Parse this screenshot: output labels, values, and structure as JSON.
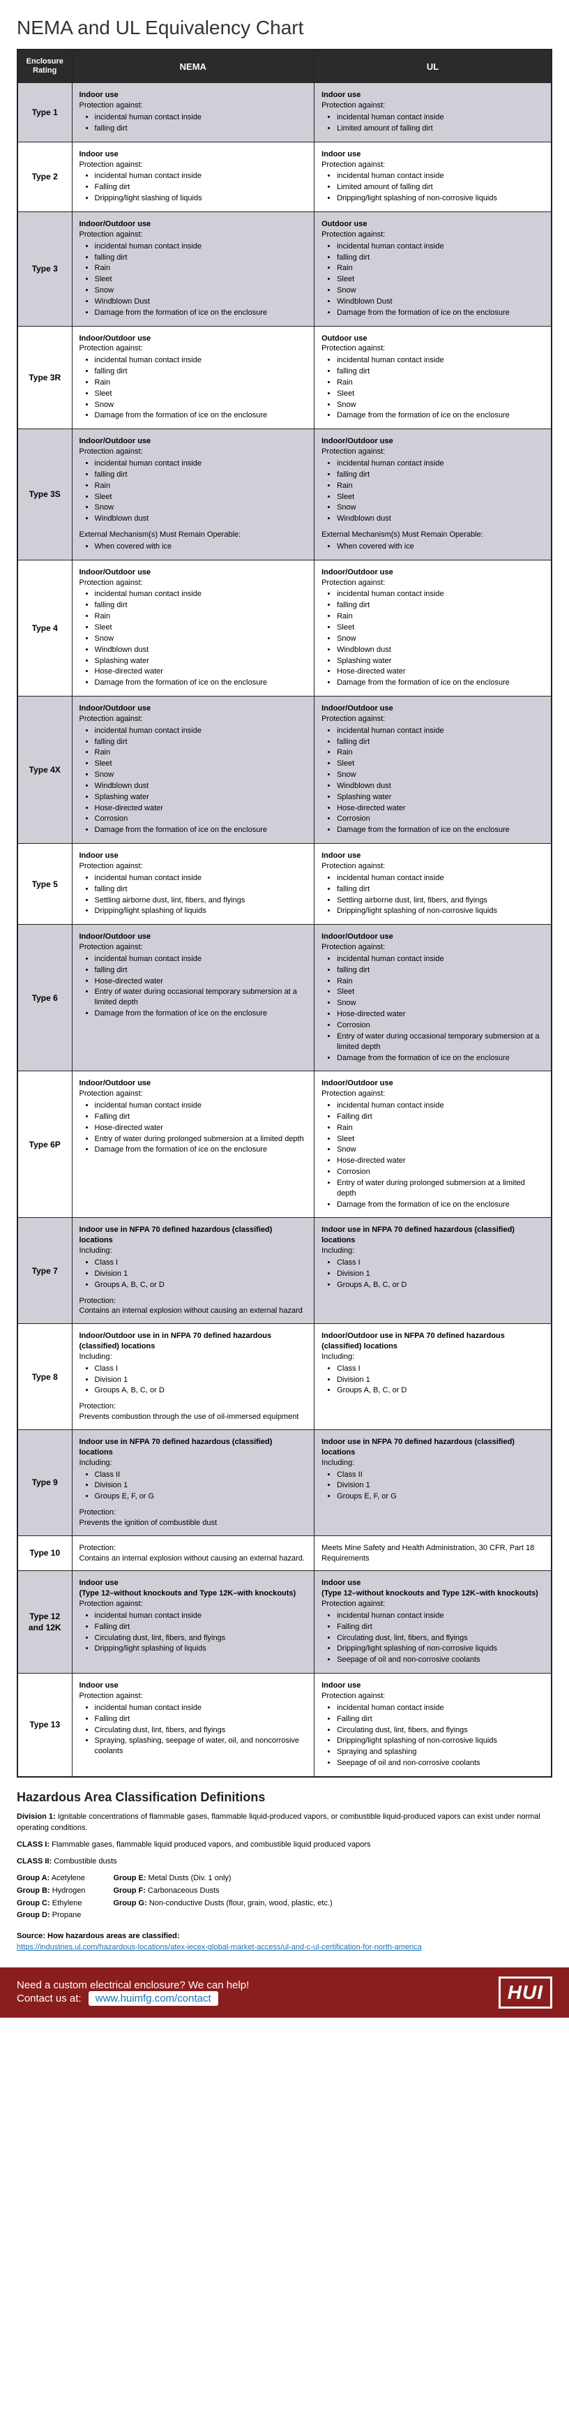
{
  "title": "NEMA and UL Equivalency Chart",
  "headers": {
    "enclosure": "Enclosure Rating",
    "nema": "NEMA",
    "ul": "UL"
  },
  "rows": [
    {
      "rating": "Type 1",
      "shade": "odd",
      "nema": "<span class='bold'>Indoor use</span><br>Protection against:<ul><li>incidental human contact inside</li><li>falling dirt</li></ul>",
      "ul": "<span class='bold'>Indoor use</span><br>Protection against:<ul><li>incidental human contact inside</li><li>Limited amount of falling dirt</li></ul>"
    },
    {
      "rating": "Type 2",
      "shade": "even",
      "nema": "<span class='bold'>Indoor use</span><br>Protection against:<ul><li>incidental human contact inside</li><li>Falling dirt</li><li>Dripping/light slashing of liquids</li></ul>",
      "ul": "<span class='bold'>Indoor use</span><br>Protection against:<ul><li>incidental human contact inside</li><li>Limited amount of falling dirt</li><li>Dripping/light splashing of non-corrosive liquids</li></ul>"
    },
    {
      "rating": "Type 3",
      "shade": "odd",
      "nema": "<span class='bold'>Indoor/Outdoor use</span><br>Protection against:<ul><li>incidental human contact inside</li><li>falling dirt</li><li>Rain</li><li>Sleet</li><li>Snow</li><li>Windblown Dust</li><li>Damage from the formation of ice on the enclosure</li></ul>",
      "ul": "<span class='bold'>Outdoor use</span><br>Protection against:<ul><li>incidental human contact inside</li><li>falling dirt</li><li>Rain</li><li>Sleet</li><li>Snow</li><li>Windblown Dust</li><li>Damage from the formation of ice on the enclosure</li></ul>"
    },
    {
      "rating": "Type 3R",
      "shade": "even",
      "nema": "<span class='bold'>Indoor/Outdoor use</span><br>Protection against:<ul><li>incidental human contact inside</li><li>falling dirt</li><li>Rain</li><li>Sleet</li><li>Snow</li><li>Damage from the formation of ice on the enclosure</li></ul>",
      "ul": "<span class='bold'>Outdoor use</span><br>Protection against:<ul><li>incidental human contact inside</li><li>falling dirt</li><li>Rain</li><li>Sleet</li><li>Snow</li><li>Damage from the formation of ice on the enclosure</li></ul>"
    },
    {
      "rating": "Type 3S",
      "shade": "odd",
      "nema": "<span class='bold'>Indoor/Outdoor use</span><br>Protection against:<ul><li>incidental human contact inside</li><li>falling dirt</li><li>Rain</li><li>Sleet</li><li>Snow</li><li>Windblown dust</li></ul><div class='sub-para'>External Mechanism(s) Must Remain Operable:<ul><li>When covered with ice</li></ul></div>",
      "ul": "<span class='bold'>Indoor/Outdoor use</span><br>Protection against:<ul><li>incidental human contact inside</li><li>falling dirt</li><li>Rain</li><li>Sleet</li><li>Snow</li><li>Windblown dust</li></ul><div class='sub-para'>External Mechanism(s) Must Remain Operable:<ul><li>When covered with ice</li></ul></div>"
    },
    {
      "rating": "Type 4",
      "shade": "even",
      "nema": "<span class='bold'>Indoor/Outdoor use</span><br>Protection against:<ul><li>incidental human contact inside</li><li>falling dirt</li><li>Rain</li><li>Sleet</li><li>Snow</li><li>Windblown dust</li><li>Splashing water</li><li>Hose-directed water</li><li>Damage from the formation of ice on the enclosure</li></ul>",
      "ul": "<span class='bold'>Indoor/Outdoor use</span><br>Protection against:<ul><li>incidental human contact inside</li><li>falling dirt</li><li>Rain</li><li>Sleet</li><li>Snow</li><li>Windblown dust</li><li>Splashing water</li><li>Hose-directed water</li><li>Damage from the formation of ice on the enclosure</li></ul>"
    },
    {
      "rating": "Type 4X",
      "shade": "odd",
      "nema": "<span class='bold'>Indoor/Outdoor use</span><br>Protection against:<ul><li>incidental human contact inside</li><li>falling dirt</li><li>Rain</li><li>Sleet</li><li>Snow</li><li>Windblown dust</li><li>Splashing water</li><li>Hose-directed water</li><li>Corrosion</li><li>Damage from the formation of ice on the enclosure</li></ul>",
      "ul": "<span class='bold'>Indoor/Outdoor use</span><br>Protection against:<ul><li>incidental human contact inside</li><li>falling dirt</li><li>Rain</li><li>Sleet</li><li>Snow</li><li>Windblown dust</li><li>Splashing water</li><li>Hose-directed water</li><li>Corrosion</li><li>Damage from the formation of ice on the enclosure</li></ul>"
    },
    {
      "rating": "Type 5",
      "shade": "even",
      "nema": "<span class='bold'>Indoor use</span><br>Protection against:<ul><li>incidental human contact inside</li><li>falling dirt</li><li>Settling airborne dust, lint, fibers, and flyings</li><li>Dripping/light splashing of liquids</li></ul>",
      "ul": "<span class='bold'>Indoor use</span><br>Protection against:<ul><li>incidental human contact inside</li><li>falling dirt</li><li>Settling airborne dust, lint, fibers, and flyings</li><li>Dripping/light splashing of non-corrosive liquids</li></ul>"
    },
    {
      "rating": "Type 6",
      "shade": "odd",
      "nema": "<span class='bold'>Indoor/Outdoor use</span><br>Protection against:<ul><li>incidental human contact inside</li><li>falling dirt</li><li>Hose-directed water</li><li>Entry of water during occasional temporary submersion at a limited depth</li><li>Damage from the formation of ice on the enclosure</li></ul>",
      "ul": "<span class='bold'>Indoor/Outdoor use</span><br>Protection against:<ul><li>incidental human contact inside</li><li>falling dirt</li><li>Rain</li><li>Sleet</li><li>Snow</li><li>Hose-directed water</li><li>Corrosion</li><li>Entry of water during occasional temporary submersion at a limited depth</li><li>Damage from the formation of ice on the enclosure</li></ul>"
    },
    {
      "rating": "Type 6P",
      "shade": "even",
      "nema": "<span class='bold'>Indoor/Outdoor use</span><br>Protection against:<ul><li>incidental human contact inside</li><li>Falling dirt</li><li>Hose-directed water</li><li>Entry of water during prolonged submersion at a limited depth</li><li>Damage from the formation of ice on the enclosure</li></ul>",
      "ul": "<span class='bold'>Indoor/Outdoor use</span><br>Protection against:<ul><li>incidental human contact inside</li><li>Falling dirt</li><li>Rain</li><li>Sleet</li><li>Snow</li><li>Hose-directed water</li><li>Corrosion</li><li>Entry of water during prolonged submersion at a limited depth</li><li>Damage from the formation of ice on the enclosure</li></ul>"
    },
    {
      "rating": "Type 7",
      "shade": "odd",
      "nema": "<span class='bold'>Indoor use in NFPA 70 defined hazardous (classified) locations</span><br>Including:<ul><li>Class I</li><li>Division 1</li><li>Groups A, B, C, or D</li></ul><div class='sub-para'>Protection:<br>Contains an internal explosion without causing an external hazard</div>",
      "ul": "<span class='bold'>Indoor use in NFPA 70 defined hazardous (classified) locations</span><br>Including:<ul><li>Class I</li><li>Division 1</li><li>Groups A, B, C, or D</li></ul>"
    },
    {
      "rating": "Type 8",
      "shade": "even",
      "nema": "<span class='bold'>Indoor/Outdoor use in in NFPA 70 defined hazardous (classified) locations</span><br>Including:<ul><li>Class I</li><li>Division 1</li><li>Groups A, B, C, or D</li></ul><div class='sub-para'>Protection:<br>Prevents combustion through the use of oil-immersed equipment</div>",
      "ul": "<span class='bold'>Indoor/Outdoor use in NFPA 70 defined hazardous (classified) locations</span><br>Including:<ul><li>Class I</li><li>Division 1</li><li>Groups A, B, C, or D</li></ul>"
    },
    {
      "rating": "Type 9",
      "shade": "odd",
      "nema": "<span class='bold'>Indoor use in NFPA 70 defined hazardous (classified) locations</span><br>Including:<ul><li>Class II</li><li>Division 1</li><li>Groups E, F, or G</li></ul><div class='sub-para'>Protection:<br>Prevents the ignition of combustible dust</div>",
      "ul": "<span class='bold'>Indoor use in NFPA 70 defined hazardous (classified) locations</span><br>Including:<ul><li>Class II</li><li>Division 1</li><li>Groups E, F, or G</li></ul>"
    },
    {
      "rating": "Type 10",
      "shade": "even",
      "nema": "Protection:<br>Contains an internal explosion without causing an external hazard.",
      "ul": "Meets Mine Safety and Health Administration, 30 CFR, Part 18 Requirements"
    },
    {
      "rating": "Type 12 and 12K",
      "shade": "odd",
      "nema": "<span class='bold'>Indoor use<br>(Type 12–without knockouts and Type 12K–with knockouts)</span><br>Protection against:<ul><li>incidental human contact inside</li><li>Falling dirt</li><li>Circulating dust, lint, fibers, and flyings</li><li>Dripping/light splashing of liquids</li></ul>",
      "ul": "<span class='bold'>Indoor use<br>(Type 12–without knockouts and Type 12K–with knockouts)</span><br>Protection against:<ul><li>incidental human contact inside</li><li>Falling dirt</li><li>Circulating dust, lint, fibers, and flyings</li><li>Dripping/light splashing of non-corrosive liquids</li><li>Seepage of oil and non-corrosive coolants</li></ul>"
    },
    {
      "rating": "Type 13",
      "shade": "even",
      "nema": "<span class='bold'>Indoor use</span><br>Protection against:<ul><li>incidental human contact inside</li><li>Falling dirt</li><li>Circulating dust, lint, fibers, and flyings</li><li>Spraying, splashing, seepage of water, oil, and noncorrosive coolants</li></ul>",
      "ul": "<span class='bold'>Indoor use</span><br>Protection against:<ul><li>incidental human contact inside</li><li>Falling dirt</li><li>Circulating dust, lint, fibers, and flyings</li><li>Dripping/light splashing of non-corrosive liquids</li><li>Spraying and splashing</li><li>Seepage of oil and non-corrosive coolants</li></ul>"
    }
  ],
  "defs": {
    "heading": "Hazardous Area Classification Definitions",
    "division1": "Division 1: Ignitable concentrations of flammable gases, flammable liquid-produced vapors, or combustible liquid-produced vapors can exist under normal operating conditions.",
    "class1": "CLASS I: Flammable gases, flammable liquid produced vapors, and combustible liquid produced vapors",
    "class2": "CLASS II: Combustible dusts",
    "groups_left": [
      "Group A: Acetylene",
      "Group B: Hydrogen",
      "Group C: Ethylene",
      "Group D: Propane"
    ],
    "groups_right": [
      "Group E: Metal Dusts (Div. 1 only)",
      "Group F: Carbonaceous Dusts",
      "Group G: Non-conductive Dusts (flour, grain, wood, plastic, etc.)"
    ],
    "source_label": "Source: How hazardous areas are classified:",
    "source_url": "https://industries.ul.com/hazardous-locations/atex-iecex-global-market-access/ul-and-c-ul-certification-for-north-america"
  },
  "footer": {
    "line1": "Need a custom electrical enclosure? We can help!",
    "line2_prefix": "Contact us at:",
    "contact_url": "www.huimfg.com/contact",
    "logo": "HUI"
  }
}
